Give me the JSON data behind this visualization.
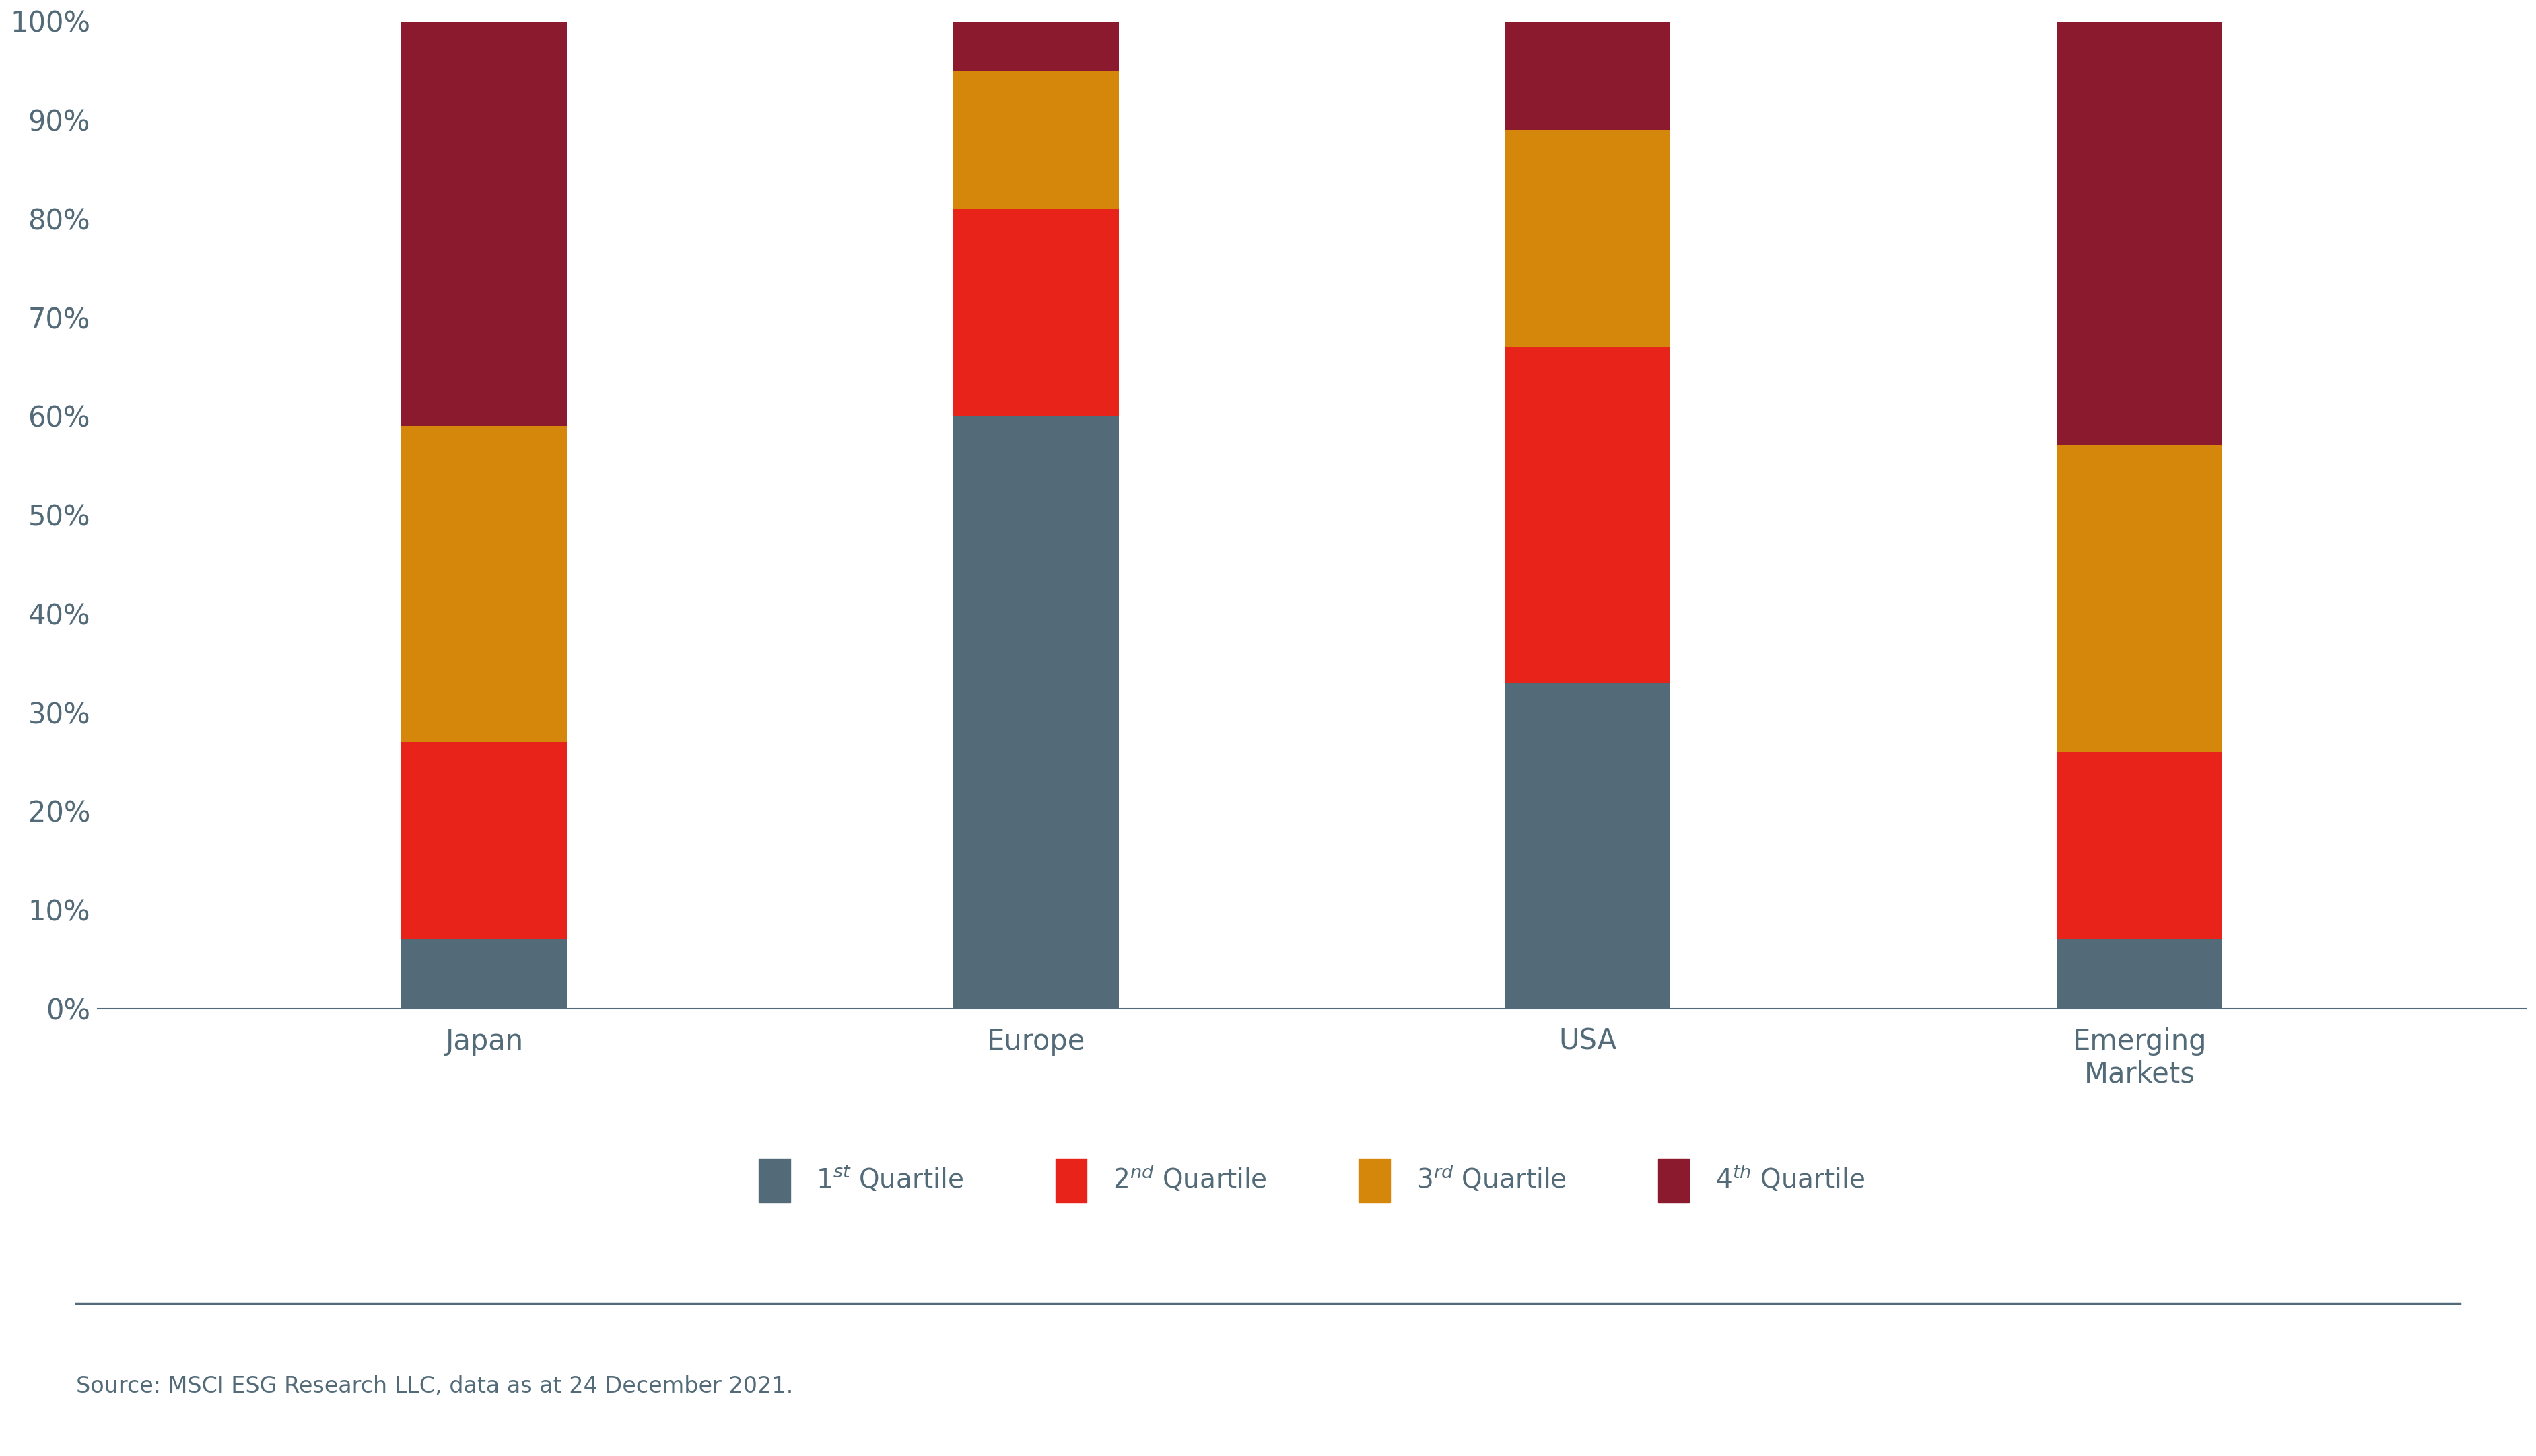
{
  "categories": [
    "Japan",
    "Europe",
    "USA",
    "Emerging\nMarkets"
  ],
  "q1": [
    0.07,
    0.6,
    0.33,
    0.07
  ],
  "q2": [
    0.2,
    0.21,
    0.34,
    0.19
  ],
  "q3": [
    0.32,
    0.14,
    0.22,
    0.31
  ],
  "q4": [
    0.41,
    0.05,
    0.11,
    0.43
  ],
  "color_q1": "#536B78",
  "color_q2": "#E8231A",
  "color_q3": "#D4870A",
  "color_q4": "#8B1A2E",
  "source": "Source: MSCI ESG Research LLC, data as at 24 December 2021.",
  "background_color": "#ffffff",
  "ylim": [
    0,
    1.0
  ],
  "bar_width": 0.3,
  "separator_color": "#536B78",
  "axis_text_color": "#536B78",
  "tick_fontsize": 30,
  "legend_fontsize": 28,
  "source_fontsize": 24
}
